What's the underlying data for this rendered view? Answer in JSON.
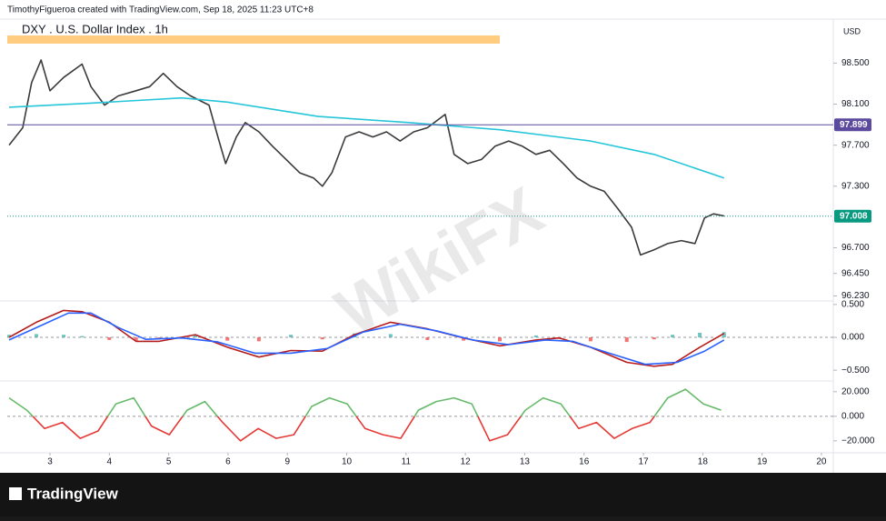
{
  "header": "TimothyFigueroa created with TradingView.com, Sep 18, 2025 11:23 UTC+8",
  "footer": "TradingView",
  "watermark": "WikiFX",
  "chart_data": [
    {
      "type": "line",
      "title": "DXY . U.S. Dollar Index . 1h",
      "currency": "USD",
      "xlim": [
        -0.72,
        13.2
      ],
      "ylim": [
        96.19,
        98.92
      ],
      "yticks": [
        {
          "value": 98.5,
          "label": "98.500"
        },
        {
          "value": 98.1,
          "label": "98.100"
        },
        {
          "value": 97.7,
          "label": "97.700"
        },
        {
          "value": 97.3,
          "label": "97.300"
        },
        {
          "value": 96.7,
          "label": "96.700"
        },
        {
          "value": 96.45,
          "label": "96.450"
        },
        {
          "value": 96.23,
          "label": "96.230"
        }
      ],
      "series": [
        {
          "color": "#3a3a3a",
          "x": [
            -0.69,
            -0.46,
            -0.31,
            -0.15,
            0,
            0.23,
            0.54,
            0.69,
            0.92,
            1.15,
            1.45,
            1.68,
            1.91,
            2.14,
            2.37,
            2.68,
            2.83,
            2.96,
            3.14,
            3.29,
            3.52,
            3.75,
            3.98,
            4.21,
            4.44,
            4.59,
            4.75,
            4.98,
            5.21,
            5.44,
            5.67,
            5.9,
            6.13,
            6.36,
            6.66,
            6.81,
            7.04,
            7.27,
            7.5,
            7.73,
            7.96,
            8.19,
            8.42,
            8.65,
            8.88,
            9.11,
            9.34,
            9.57,
            9.8,
            9.95,
            10.18,
            10.41,
            10.64,
            10.87,
            11.03,
            11.18,
            11.36
          ],
          "values": [
            97.7,
            97.87,
            98.31,
            98.53,
            98.23,
            98.36,
            98.49,
            98.27,
            98.09,
            98.18,
            98.23,
            98.27,
            98.4,
            98.27,
            98.18,
            98.09,
            97.78,
            97.52,
            97.78,
            97.92,
            97.83,
            97.69,
            97.56,
            97.43,
            97.38,
            97.3,
            97.43,
            97.78,
            97.83,
            97.78,
            97.83,
            97.74,
            97.83,
            97.87,
            98.0,
            97.61,
            97.52,
            97.56,
            97.69,
            97.74,
            97.69,
            97.61,
            97.65,
            97.52,
            97.38,
            97.3,
            97.25,
            97.08,
            96.9,
            96.63,
            96.68,
            96.74,
            96.77,
            96.74,
            96.99,
            97.03,
            97.01
          ]
        },
        {
          "color": "#26c6da",
          "x": [
            -0.69,
            0.69,
            2.22,
            2.99,
            4.52,
            6.05,
            7.58,
            9.11,
            10.18,
            11.36
          ],
          "values": [
            98.07,
            98.11,
            98.16,
            98.12,
            97.98,
            97.92,
            97.85,
            97.74,
            97.61,
            97.38
          ]
        }
      ],
      "price_lines": [
        {
          "value": 97.899,
          "color": "#5b4a9e",
          "style": "solid"
        },
        {
          "value": 97.008,
          "color": "#089981",
          "style": "dotted"
        }
      ]
    },
    {
      "type": "line",
      "xlim": [
        -0.72,
        13.2
      ],
      "ylim": [
        -0.65,
        0.54
      ],
      "yticks": [
        {
          "value": 0.5,
          "label": "0.500"
        },
        {
          "value": 0,
          "label": "0.000"
        },
        {
          "value": -0.5,
          "label": "−0.500"
        }
      ],
      "zero_line": true,
      "series": [
        {
          "color": "#b71c1c",
          "x": [
            -0.69,
            -0.23,
            0.23,
            0.54,
            1.0,
            1.45,
            1.84,
            2.45,
            2.99,
            3.52,
            4.06,
            4.59,
            5.13,
            5.74,
            6.36,
            6.97,
            7.58,
            8.19,
            8.58,
            9.11,
            9.72,
            10.18,
            10.49,
            10.95,
            11.36
          ],
          "values": [
            0,
            0.23,
            0.41,
            0.39,
            0.23,
            -0.06,
            -0.06,
            0.04,
            -0.15,
            -0.3,
            -0.2,
            -0.21,
            0.04,
            0.23,
            0.13,
            -0.01,
            -0.13,
            -0.04,
            -0.01,
            -0.15,
            -0.38,
            -0.44,
            -0.41,
            -0.15,
            0.06
          ]
        },
        {
          "color": "#2962ff",
          "x": [
            -0.69,
            -0.15,
            0.31,
            0.69,
            1.15,
            1.61,
            2.22,
            2.83,
            3.45,
            4.06,
            4.67,
            5.28,
            5.9,
            6.51,
            7.12,
            7.73,
            8.35,
            8.81,
            9.42,
            10.03,
            10.57,
            11.03,
            11.36
          ],
          "values": [
            -0.04,
            0.18,
            0.37,
            0.37,
            0.15,
            -0.03,
            -0.01,
            -0.07,
            -0.24,
            -0.24,
            -0.17,
            0.08,
            0.2,
            0.1,
            -0.04,
            -0.11,
            -0.04,
            -0.06,
            -0.24,
            -0.41,
            -0.38,
            -0.21,
            -0.04
          ]
        }
      ],
      "histogram": {
        "color_up": "#4db6ac",
        "color_down": "#ef5350",
        "x": [
          -0.69,
          -0.23,
          0.23,
          0.54,
          1.0,
          1.45,
          1.84,
          2.45,
          2.99,
          3.52,
          4.06,
          4.59,
          5.13,
          5.74,
          6.36,
          6.97,
          7.58,
          8.19,
          8.58,
          9.11,
          9.72,
          10.18,
          10.49,
          10.95,
          11.36
        ],
        "values": [
          0.04,
          0.05,
          0.04,
          0.02,
          -0.04,
          -0.05,
          -0.02,
          0.03,
          -0.05,
          -0.06,
          0.04,
          -0.03,
          0.06,
          0.05,
          -0.04,
          -0.05,
          -0.06,
          0.03,
          -0.02,
          -0.06,
          -0.07,
          -0.03,
          0.04,
          0.07,
          0.08
        ]
      }
    },
    {
      "type": "line",
      "xlim": [
        -0.72,
        13.2
      ],
      "ylim": [
        -29,
        28
      ],
      "yticks": [
        {
          "value": 20,
          "label": "20.000"
        },
        {
          "value": 0,
          "label": "0.000"
        },
        {
          "value": -20,
          "label": "−20.000"
        }
      ],
      "zero_line": true,
      "xticks": [
        {
          "value": 0,
          "label": "3"
        },
        {
          "value": 1,
          "label": "4"
        },
        {
          "value": 2,
          "label": "5"
        },
        {
          "value": 3,
          "label": "6"
        },
        {
          "value": 4,
          "label": "9"
        },
        {
          "value": 5,
          "label": "10"
        },
        {
          "value": 6,
          "label": "11"
        },
        {
          "value": 7,
          "label": "12"
        },
        {
          "value": 8,
          "label": "13"
        },
        {
          "value": 9,
          "label": "16"
        },
        {
          "value": 10,
          "label": "17"
        },
        {
          "value": 11,
          "label": "18"
        },
        {
          "value": 12,
          "label": "19"
        },
        {
          "value": 13,
          "label": "20"
        }
      ],
      "series": [
        {
          "color_above": "#66bb6a",
          "color_below": "#e53935",
          "x": [
            -0.69,
            -0.39,
            -0.09,
            0.21,
            0.51,
            0.81,
            1.11,
            1.41,
            1.71,
            2.01,
            2.31,
            2.61,
            2.91,
            3.21,
            3.51,
            3.81,
            4.11,
            4.41,
            4.71,
            5.01,
            5.31,
            5.61,
            5.91,
            6.21,
            6.51,
            6.81,
            7.11,
            7.41,
            7.71,
            8.01,
            8.31,
            8.61,
            8.91,
            9.21,
            9.51,
            9.81,
            10.11,
            10.41,
            10.71,
            11.01,
            11.31
          ],
          "values": [
            15,
            5,
            -10,
            -5,
            -18,
            -12,
            10,
            15,
            -8,
            -15,
            5,
            12,
            -5,
            -20,
            -10,
            -18,
            -15,
            8,
            15,
            10,
            -10,
            -15,
            -18,
            5,
            12,
            15,
            10,
            -20,
            -15,
            5,
            15,
            10,
            -10,
            -5,
            -18,
            -10,
            -5,
            15,
            22,
            10,
            5
          ]
        }
      ]
    }
  ]
}
